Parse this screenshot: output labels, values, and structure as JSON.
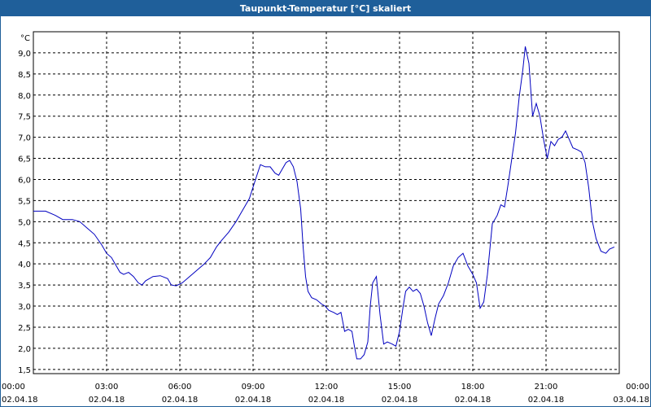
{
  "window": {
    "title": "Taupunkt-Temperatur [°C] skaliert"
  },
  "colors": {
    "titlebar": "#1f5f9a",
    "line": "#0000c0",
    "grid": "#000000"
  },
  "chart_data": {
    "type": "line",
    "title": "Taupunkt-Temperatur [°C] skaliert",
    "ylabel": "°C",
    "xlabel": "",
    "ylim": [
      1.4,
      9.5
    ],
    "y_ticks": [
      "1,5",
      "2,0",
      "2,5",
      "3,0",
      "3,5",
      "4,0",
      "4,5",
      "5,0",
      "5,5",
      "6,0",
      "6,5",
      "7,0",
      "7,5",
      "8,0",
      "8,5",
      "9,0"
    ],
    "x_range_hours": [
      0,
      24
    ],
    "x_ticks": [
      {
        "time": "00:00",
        "date": "02.04.18"
      },
      {
        "time": "03:00",
        "date": "02.04.18"
      },
      {
        "time": "06:00",
        "date": "02.04.18"
      },
      {
        "time": "09:00",
        "date": "02.04.18"
      },
      {
        "time": "12:00",
        "date": "02.04.18"
      },
      {
        "time": "15:00",
        "date": "02.04.18"
      },
      {
        "time": "18:00",
        "date": "02.04.18"
      },
      {
        "time": "21:00",
        "date": "02.04.18"
      },
      {
        "time": "00:00",
        "date": "03.04.18"
      }
    ],
    "grid": true,
    "series": [
      {
        "name": "",
        "points": [
          [
            0.0,
            5.25
          ],
          [
            0.5,
            5.25
          ],
          [
            0.9,
            5.15
          ],
          [
            1.2,
            5.05
          ],
          [
            1.6,
            5.05
          ],
          [
            1.9,
            5.0
          ],
          [
            2.2,
            4.85
          ],
          [
            2.5,
            4.7
          ],
          [
            2.8,
            4.45
          ],
          [
            3.0,
            4.25
          ],
          [
            3.2,
            4.15
          ],
          [
            3.35,
            4.0
          ],
          [
            3.55,
            3.8
          ],
          [
            3.7,
            3.75
          ],
          [
            3.9,
            3.8
          ],
          [
            4.1,
            3.7
          ],
          [
            4.3,
            3.55
          ],
          [
            4.45,
            3.5
          ],
          [
            4.6,
            3.6
          ],
          [
            4.9,
            3.7
          ],
          [
            5.2,
            3.72
          ],
          [
            5.5,
            3.65
          ],
          [
            5.65,
            3.5
          ],
          [
            5.85,
            3.48
          ],
          [
            6.1,
            3.55
          ],
          [
            6.4,
            3.7
          ],
          [
            6.7,
            3.85
          ],
          [
            7.0,
            4.0
          ],
          [
            7.25,
            4.15
          ],
          [
            7.5,
            4.4
          ],
          [
            7.7,
            4.55
          ],
          [
            8.0,
            4.75
          ],
          [
            8.3,
            5.0
          ],
          [
            8.6,
            5.3
          ],
          [
            8.85,
            5.55
          ],
          [
            9.1,
            6.0
          ],
          [
            9.3,
            6.35
          ],
          [
            9.5,
            6.3
          ],
          [
            9.7,
            6.3
          ],
          [
            9.9,
            6.15
          ],
          [
            10.05,
            6.1
          ],
          [
            10.2,
            6.25
          ],
          [
            10.35,
            6.4
          ],
          [
            10.5,
            6.45
          ],
          [
            10.65,
            6.3
          ],
          [
            10.8,
            5.95
          ],
          [
            10.95,
            5.3
          ],
          [
            11.05,
            4.4
          ],
          [
            11.15,
            3.7
          ],
          [
            11.25,
            3.35
          ],
          [
            11.4,
            3.2
          ],
          [
            11.6,
            3.15
          ],
          [
            11.8,
            3.05
          ],
          [
            11.95,
            3.0
          ],
          [
            12.1,
            2.9
          ],
          [
            12.3,
            2.85
          ],
          [
            12.45,
            2.8
          ],
          [
            12.6,
            2.85
          ],
          [
            12.75,
            2.4
          ],
          [
            12.9,
            2.45
          ],
          [
            13.05,
            2.4
          ],
          [
            13.15,
            2.05
          ],
          [
            13.25,
            1.75
          ],
          [
            13.4,
            1.75
          ],
          [
            13.55,
            1.85
          ],
          [
            13.7,
            2.15
          ],
          [
            13.8,
            3.0
          ],
          [
            13.9,
            3.55
          ],
          [
            14.05,
            3.7
          ],
          [
            14.2,
            2.8
          ],
          [
            14.35,
            2.1
          ],
          [
            14.5,
            2.15
          ],
          [
            14.7,
            2.1
          ],
          [
            14.85,
            2.05
          ],
          [
            15.0,
            2.4
          ],
          [
            15.15,
            3.0
          ],
          [
            15.25,
            3.35
          ],
          [
            15.4,
            3.45
          ],
          [
            15.55,
            3.35
          ],
          [
            15.7,
            3.4
          ],
          [
            15.85,
            3.3
          ],
          [
            16.0,
            3.0
          ],
          [
            16.15,
            2.6
          ],
          [
            16.3,
            2.3
          ],
          [
            16.45,
            2.7
          ],
          [
            16.6,
            3.05
          ],
          [
            16.8,
            3.25
          ],
          [
            17.0,
            3.55
          ],
          [
            17.2,
            3.95
          ],
          [
            17.4,
            4.15
          ],
          [
            17.6,
            4.25
          ],
          [
            17.8,
            3.95
          ],
          [
            18.0,
            3.75
          ],
          [
            18.15,
            3.55
          ],
          [
            18.3,
            2.95
          ],
          [
            18.45,
            3.1
          ],
          [
            18.6,
            3.75
          ],
          [
            18.8,
            4.95
          ],
          [
            19.0,
            5.15
          ],
          [
            19.15,
            5.4
          ],
          [
            19.3,
            5.35
          ],
          [
            19.45,
            5.9
          ],
          [
            19.6,
            6.5
          ],
          [
            19.75,
            7.1
          ],
          [
            19.9,
            7.95
          ],
          [
            20.05,
            8.6
          ],
          [
            20.15,
            9.15
          ],
          [
            20.3,
            8.75
          ],
          [
            20.45,
            7.5
          ],
          [
            20.6,
            7.8
          ],
          [
            20.75,
            7.5
          ],
          [
            20.9,
            6.95
          ],
          [
            21.05,
            6.5
          ],
          [
            21.2,
            6.9
          ],
          [
            21.35,
            6.8
          ],
          [
            21.5,
            6.95
          ],
          [
            21.65,
            7.0
          ],
          [
            21.8,
            7.15
          ],
          [
            21.95,
            6.95
          ],
          [
            22.1,
            6.75
          ],
          [
            22.3,
            6.7
          ],
          [
            22.45,
            6.65
          ],
          [
            22.6,
            6.4
          ],
          [
            22.75,
            5.8
          ],
          [
            22.9,
            5.0
          ],
          [
            23.05,
            4.6
          ],
          [
            23.25,
            4.3
          ],
          [
            23.45,
            4.25
          ],
          [
            23.6,
            4.35
          ],
          [
            23.8,
            4.4
          ]
        ]
      }
    ]
  }
}
